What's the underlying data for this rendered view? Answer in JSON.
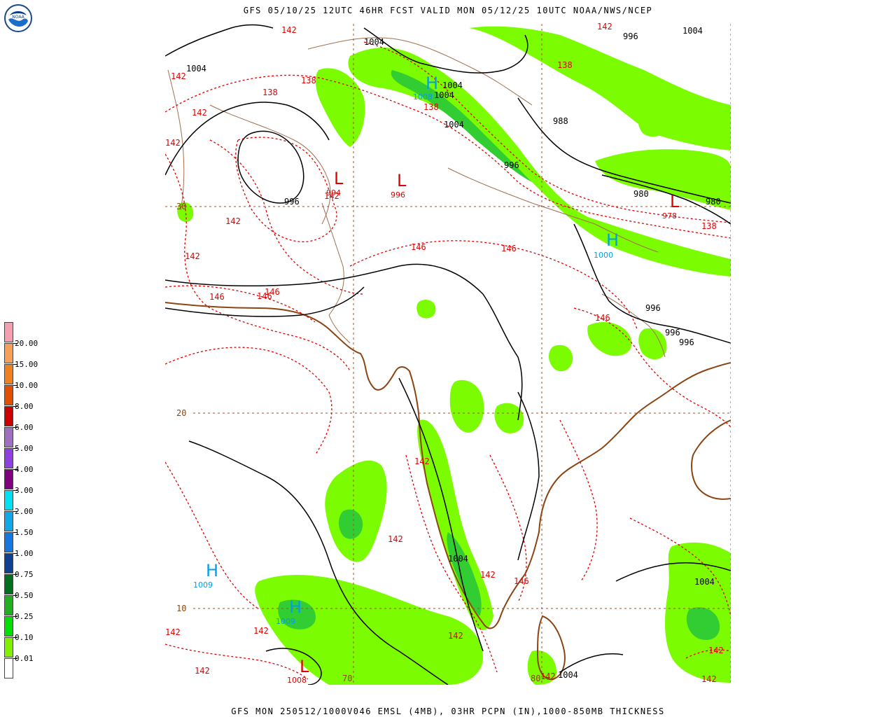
{
  "header": {
    "top_title": "GFS 05/10/25 12UTC 46HR FCST VALID MON 05/12/25 10UTC NOAA/NWS/NCEP",
    "bottom_title": "GFS MON 250512/1000V046 EMSL (4MB), 03HR PCPN (IN),1000-850MB THICKNESS",
    "logo_text": "NOAA"
  },
  "colors": {
    "isobar": "#000000",
    "thickness": "#e00000",
    "coast": "#8b4513",
    "border": "#a07050",
    "grid": "#a0522d",
    "high": "#00a0e8",
    "low": "#e00000",
    "precip_light": "#7cfc00",
    "precip_mid": "#32cd32"
  },
  "grid_labels": {
    "lat30": "30",
    "lat20": "20",
    "lat10": "10",
    "lon70": "70",
    "lon80": "80"
  },
  "pressure_centers": [
    {
      "type": "H",
      "value": "1009",
      "color": "blue"
    },
    {
      "type": "H",
      "value": "1009",
      "color": "blue"
    },
    {
      "type": "H",
      "value": "1008",
      "color": "blue"
    },
    {
      "type": "H",
      "value": "1000",
      "color": "blue"
    },
    {
      "type": "L",
      "value": "994",
      "color": "red"
    },
    {
      "type": "L",
      "value": "996",
      "color": "red"
    },
    {
      "type": "L",
      "value": "978",
      "color": "red"
    },
    {
      "type": "L",
      "value": "1008",
      "color": "red"
    }
  ],
  "isobar_labels": [
    "1004",
    "1004",
    "1004",
    "1004",
    "1004",
    "1004",
    "1004",
    "1004",
    "1004",
    "996",
    "996",
    "996",
    "996",
    "996",
    "996",
    "988",
    "980",
    "980"
  ],
  "thickness_labels": [
    "142",
    "142",
    "142",
    "142",
    "142",
    "142",
    "142",
    "142",
    "142",
    "142",
    "142",
    "142",
    "142",
    "142",
    "142",
    "142",
    "142",
    "142",
    "138",
    "138",
    "138",
    "138",
    "138",
    "146",
    "146",
    "146",
    "146",
    "146",
    "146",
    "146"
  ],
  "legend": {
    "labels": [
      "20.00",
      "15.00",
      "10.00",
      "8.00",
      "6.00",
      "5.00",
      "4.00",
      "3.00",
      "2.00",
      "1.50",
      "1.00",
      "0.75",
      "0.50",
      "0.25",
      "0.10",
      "0.01"
    ],
    "colors": [
      "#f4a0b0",
      "#f5a05a",
      "#f08020",
      "#e05000",
      "#cc0000",
      "#a070c0",
      "#9040e0",
      "#800080",
      "#00e0f0",
      "#10a8e8",
      "#1478e0",
      "#104090",
      "#007020",
      "#20b020",
      "#00e000",
      "#80f000",
      "#ffffff"
    ]
  }
}
